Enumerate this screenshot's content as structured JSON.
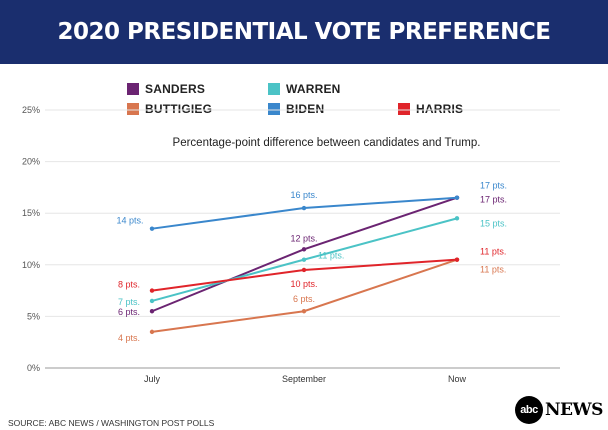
{
  "header": {
    "title": "2020 PRESIDENTIAL VOTE PREFERENCE"
  },
  "footer": {
    "source": "SOURCE: ABC NEWS  / WASHINGTON POST POLLS",
    "logo_mark": "abc",
    "logo_text": "NEWS"
  },
  "colors": {
    "header_bg": "#1a2e6e",
    "sanders": "#6b2472",
    "warren": "#4bc3c6",
    "buttigieg": "#d8764f",
    "biden": "#3a87cc",
    "harris": "#e0242a"
  },
  "chart_data": {
    "type": "line",
    "title": "2020 PRESIDENTIAL VOTE PREFERENCE",
    "subtitle": "Percentage-point difference between candidates and Trump.",
    "categories": [
      "July",
      "September",
      "Now"
    ],
    "ylim": [
      0,
      25
    ],
    "yticks": [
      "0%",
      "5%",
      "10%",
      "15%",
      "20%",
      "25%"
    ],
    "ytick_values": [
      0,
      5,
      10,
      15,
      20,
      25
    ],
    "legend_placement": "top",
    "series": [
      {
        "key": "sanders",
        "name": "SANDERS",
        "color": "#6b2472",
        "values": [
          5.5,
          11.5,
          16.5
        ],
        "labels": [
          "6 pts.",
          "12 pts.",
          "17 pts."
        ]
      },
      {
        "key": "warren",
        "name": "WARREN",
        "color": "#4bc3c6",
        "values": [
          6.5,
          10.5,
          14.5
        ],
        "labels": [
          "7 pts.",
          "11 pts.",
          "15 pts."
        ]
      },
      {
        "key": "buttigieg",
        "name": "BUTTIGIEG",
        "color": "#d8764f",
        "values": [
          3.5,
          5.5,
          10.5
        ],
        "labels": [
          "4 pts.",
          "6 pts.",
          "11 pts."
        ]
      },
      {
        "key": "biden",
        "name": "BIDEN",
        "color": "#3a87cc",
        "values": [
          13.5,
          15.5,
          16.5
        ],
        "labels": [
          "14 pts.",
          "16 pts.",
          "17 pts."
        ]
      },
      {
        "key": "harris",
        "name": "HARRIS",
        "color": "#e0242a",
        "values": [
          7.5,
          9.5,
          10.5
        ],
        "labels": [
          "8 pts.",
          "10 pts.",
          "11 pts."
        ]
      }
    ]
  }
}
